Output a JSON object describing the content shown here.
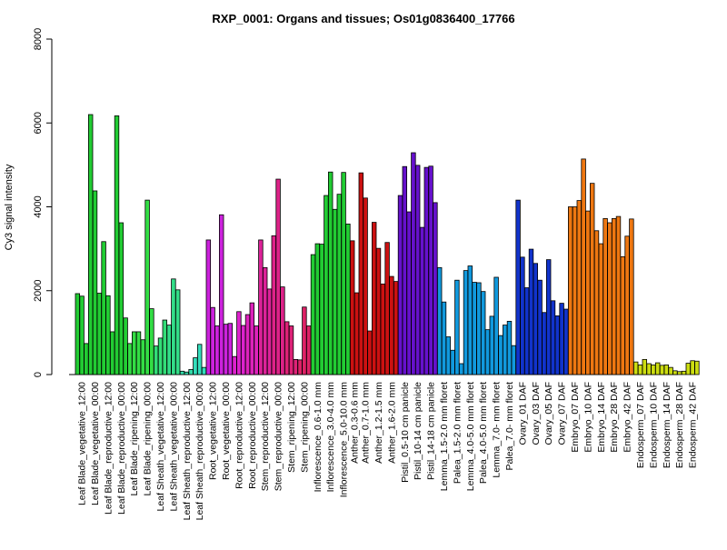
{
  "chart_data": {
    "type": "bar",
    "title": "RXP_0001: Organs and tissues; Os01g0836400_17766",
    "xlabel": "",
    "ylabel": "Cy3 signal intensity",
    "ylim": [
      0,
      8000
    ],
    "yticks": [
      0,
      2000,
      4000,
      6000,
      8000
    ],
    "grid": false,
    "legend": "none",
    "groups": [
      {
        "label": "Leaf Blade_vegetative_12:00",
        "color": "#22cc33",
        "values": [
          1930,
          1870,
          740
        ]
      },
      {
        "label": "Leaf Blade_vegetative_00:00",
        "color": "#22cc33",
        "values": [
          6200,
          4380,
          1940
        ]
      },
      {
        "label": "Leaf Blade_reproductive_12:00",
        "color": "#22cc33",
        "values": [
          3170,
          1880,
          1020
        ]
      },
      {
        "label": "Leaf Blade_reproductive_00:00",
        "color": "#22cc33",
        "values": [
          6170,
          3620,
          1350
        ]
      },
      {
        "label": "Leaf Blade_ripening_12:00",
        "color": "#33dd44",
        "values": [
          740,
          1020,
          1020
        ]
      },
      {
        "label": "Leaf Blade_ripening_00:00",
        "color": "#33dd44",
        "values": [
          830,
          4160,
          1570
        ]
      },
      {
        "label": "Leaf Sheath_vegetative_12:00",
        "color": "#33dd77",
        "values": [
          680,
          870,
          1300
        ]
      },
      {
        "label": "Leaf Sheath_vegetative_00:00",
        "color": "#33dd88",
        "values": [
          1180,
          2280,
          2020
        ]
      },
      {
        "label": "Leaf Sheath_reproductive_12:00",
        "color": "#33ddaa",
        "values": [
          80,
          60,
          120
        ]
      },
      {
        "label": "Leaf Sheath_reproductive_00:00",
        "color": "#33ddbb",
        "values": [
          400,
          720,
          170
        ]
      },
      {
        "label": "Root_vegetative_12:00",
        "color": "#cc22dd",
        "values": [
          3210,
          1600,
          1160
        ]
      },
      {
        "label": "Root_vegetative_00:00",
        "color": "#cc22dd",
        "values": [
          3810,
          1200,
          1220
        ]
      },
      {
        "label": "Root_reproductive_12:00",
        "color": "#dd22cc",
        "values": [
          430,
          1500,
          1170
        ]
      },
      {
        "label": "Root_reproductive_00:00",
        "color": "#dd22bb",
        "values": [
          1430,
          1710,
          1160
        ]
      },
      {
        "label": "Stem_reproductive_12:00",
        "color": "#dd2299",
        "values": [
          3210,
          2550,
          2040
        ]
      },
      {
        "label": "Stem_reproductive_00:00",
        "color": "#dd2288",
        "values": [
          3310,
          4660,
          2090
        ]
      },
      {
        "label": "Stem_ripening_12:00",
        "color": "#dd2277",
        "values": [
          1260,
          1160,
          360
        ]
      },
      {
        "label": "Stem_ripening_00:00",
        "color": "#dd2266",
        "values": [
          350,
          1610,
          1160
        ]
      },
      {
        "label": "Inflorescence_0.6-1.0 mm",
        "color": "#22cc33",
        "values": [
          2860,
          3120,
          3110
        ]
      },
      {
        "label": "Inflorescence_3.0-4.0 mm",
        "color": "#22cc33",
        "values": [
          4270,
          4830,
          3940
        ]
      },
      {
        "label": "Inflorescence_5.0-10.0 mm",
        "color": "#22cc33",
        "values": [
          4300,
          4820,
          3590
        ]
      },
      {
        "label": "Anther_0.3-0.6 mm",
        "color": "#cc1111",
        "values": [
          3190,
          1950
        ]
      },
      {
        "label": "Anther_0.7-1.0 mm",
        "color": "#cc1111",
        "values": [
          4810,
          4210,
          1040
        ]
      },
      {
        "label": "Anther_1.2-1.5 mm",
        "color": "#cc1111",
        "values": [
          3630,
          3010,
          2160
        ]
      },
      {
        "label": "Anther_1.6-2.0 mm",
        "color": "#cc1111",
        "values": [
          3150,
          2340,
          2220
        ]
      },
      {
        "label": "Pistil_0.5-10 cm panicle",
        "color": "#6611cc",
        "values": [
          4270,
          4960,
          3880
        ]
      },
      {
        "label": "Pistil_10-14 cm panicle",
        "color": "#6611cc",
        "values": [
          5290,
          4990,
          3510
        ]
      },
      {
        "label": "Pistil_14-18 cm panicle",
        "color": "#6611cc",
        "values": [
          4940,
          4970,
          4100
        ]
      },
      {
        "label": "Lemma_1.5-2.0 mm floret",
        "color": "#1199dd",
        "values": [
          2550,
          1730,
          900
        ]
      },
      {
        "label": "Palea_1.5-2.0 mm floret",
        "color": "#1199dd",
        "values": [
          580,
          2250,
          260
        ]
      },
      {
        "label": "Lemma_4.0-5.0 mm floret",
        "color": "#1199dd",
        "values": [
          2480,
          2590,
          2200
        ]
      },
      {
        "label": "Palea_4.0-5.0 mm floret",
        "color": "#1199dd",
        "values": [
          2190,
          1980,
          1070
        ]
      },
      {
        "label": "Lemma_7.0- mm floret",
        "color": "#1199dd",
        "values": [
          1390,
          2320,
          930
        ]
      },
      {
        "label": "Palea_7.0- mm floret",
        "color": "#1199dd",
        "values": [
          1180,
          1270,
          690
        ]
      },
      {
        "label": "Ovary_01 DAF",
        "color": "#1133cc",
        "values": [
          4160,
          2800,
          2070
        ]
      },
      {
        "label": "Ovary_03 DAF",
        "color": "#1133cc",
        "values": [
          2990,
          2650,
          2250
        ]
      },
      {
        "label": "Ovary_05 DAF",
        "color": "#1133cc",
        "values": [
          1480,
          2740,
          1760
        ]
      },
      {
        "label": "Ovary_07 DAF",
        "color": "#1133cc",
        "values": [
          1400,
          1700,
          1560
        ]
      },
      {
        "label": "Embryo_07 DAF",
        "color": "#ee7711",
        "values": [
          4000,
          4000,
          4150
        ]
      },
      {
        "label": "Embryo_10 DAF",
        "color": "#ee7711",
        "values": [
          5140,
          3900,
          4560
        ]
      },
      {
        "label": "Embryo_14 DAF",
        "color": "#ee7711",
        "values": [
          3430,
          3120,
          3720
        ]
      },
      {
        "label": "Embryo_28 DAF",
        "color": "#ee7711",
        "values": [
          3620,
          3720,
          3770
        ]
      },
      {
        "label": "Embryo_42 DAF",
        "color": "#ee7711",
        "values": [
          2810,
          3300,
          3710
        ]
      },
      {
        "label": "Endosperm_07 DAF",
        "color": "#ccdd11",
        "values": [
          300,
          230,
          360
        ]
      },
      {
        "label": "Endosperm_10 DAF",
        "color": "#ccdd11",
        "values": [
          260,
          230,
          280
        ]
      },
      {
        "label": "Endosperm_14 DAF",
        "color": "#ccdd11",
        "values": [
          220,
          230,
          170
        ]
      },
      {
        "label": "Endosperm_28 DAF",
        "color": "#ccdd11",
        "values": [
          90,
          70,
          80
        ]
      },
      {
        "label": "Endosperm_42 DAF",
        "color": "#ccdd11",
        "values": [
          270,
          330,
          320
        ]
      }
    ]
  }
}
